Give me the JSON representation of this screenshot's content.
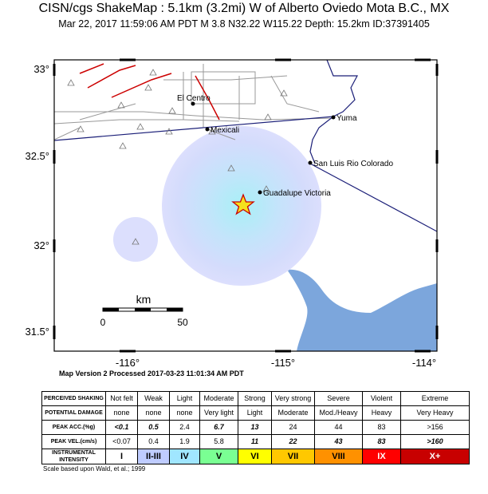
{
  "header": {
    "title": "CISN/cgs ShakeMap : 5.1km (3.2mi) W of Alberto Oviedo Mota B.C., MX",
    "subtitle": "Mar 22, 2017 11:59:06 AM PDT   M 3.8   N32.22 W115.22   Depth: 15.2km   ID:37391405"
  },
  "map": {
    "lat_labels": [
      "33°",
      "32.5°",
      "32°",
      "31.5°"
    ],
    "lon_labels": [
      "-116°",
      "-115°",
      "-114°"
    ],
    "places": [
      "El Centro",
      "Mexicali",
      "Yuma",
      "San Luis Rio Colorado",
      "Guadalupe Victoria"
    ],
    "scale": {
      "unit": "km",
      "labels": [
        "0",
        "50"
      ]
    }
  },
  "footer": "Map Version 2 Processed 2017-03-23 11:01:34 AM PDT",
  "legend": {
    "rows": [
      [
        "PERCEIVED SHAKING",
        "Not felt",
        "Weak",
        "Light",
        "Moderate",
        "Strong",
        "Very strong",
        "Severe",
        "Violent",
        "Extreme"
      ],
      [
        "POTENTIAL DAMAGE",
        "none",
        "none",
        "none",
        "Very light",
        "Light",
        "Moderate",
        "Mod./Heavy",
        "Heavy",
        "Very Heavy"
      ],
      [
        "PEAK ACC.(%g)",
        "<0.1",
        "0.5",
        "2.4",
        "6.7",
        "13",
        "24",
        "44",
        "83",
        ">156"
      ],
      [
        "PEAK VEL.(cm/s)",
        "<0.07",
        "0.4",
        "1.9",
        "5.8",
        "11",
        "22",
        "43",
        "83",
        ">160"
      ],
      [
        "INSTRUMENTAL INTENSITY",
        "I",
        "II-III",
        "IV",
        "V",
        "VI",
        "VII",
        "VIII",
        "IX",
        "X+"
      ]
    ],
    "note": "Scale based upon Wald, et al.; 1999"
  }
}
